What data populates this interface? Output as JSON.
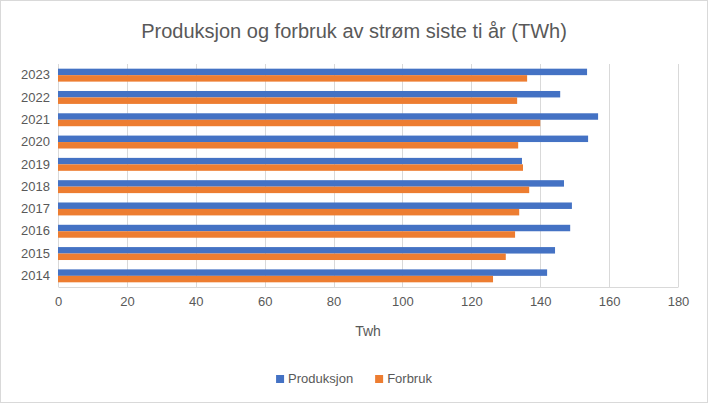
{
  "chart_data": {
    "type": "bar",
    "orientation": "horizontal",
    "title": "Produksjon og forbruk av strøm siste ti år (TWh)",
    "x_label": "Twh",
    "categories": [
      "2014",
      "2015",
      "2016",
      "2017",
      "2018",
      "2019",
      "2020",
      "2021",
      "2022",
      "2023"
    ],
    "series": [
      {
        "name": "Produksjon",
        "color": "#4472c4",
        "values": [
          142,
          144.3,
          148.7,
          149.2,
          146.9,
          134.7,
          153.9,
          156.8,
          145.8,
          153.6
        ]
      },
      {
        "name": "Forbruk",
        "color": "#ed7d31",
        "values": [
          126.3,
          130,
          132.7,
          133.9,
          136.8,
          135,
          133.6,
          140,
          133.3,
          136.2
        ]
      }
    ],
    "xlim": [
      0,
      180
    ],
    "xticks": [
      0,
      20,
      40,
      60,
      80,
      100,
      120,
      140,
      160,
      180
    ],
    "grid": true,
    "legend": "bottom"
  }
}
